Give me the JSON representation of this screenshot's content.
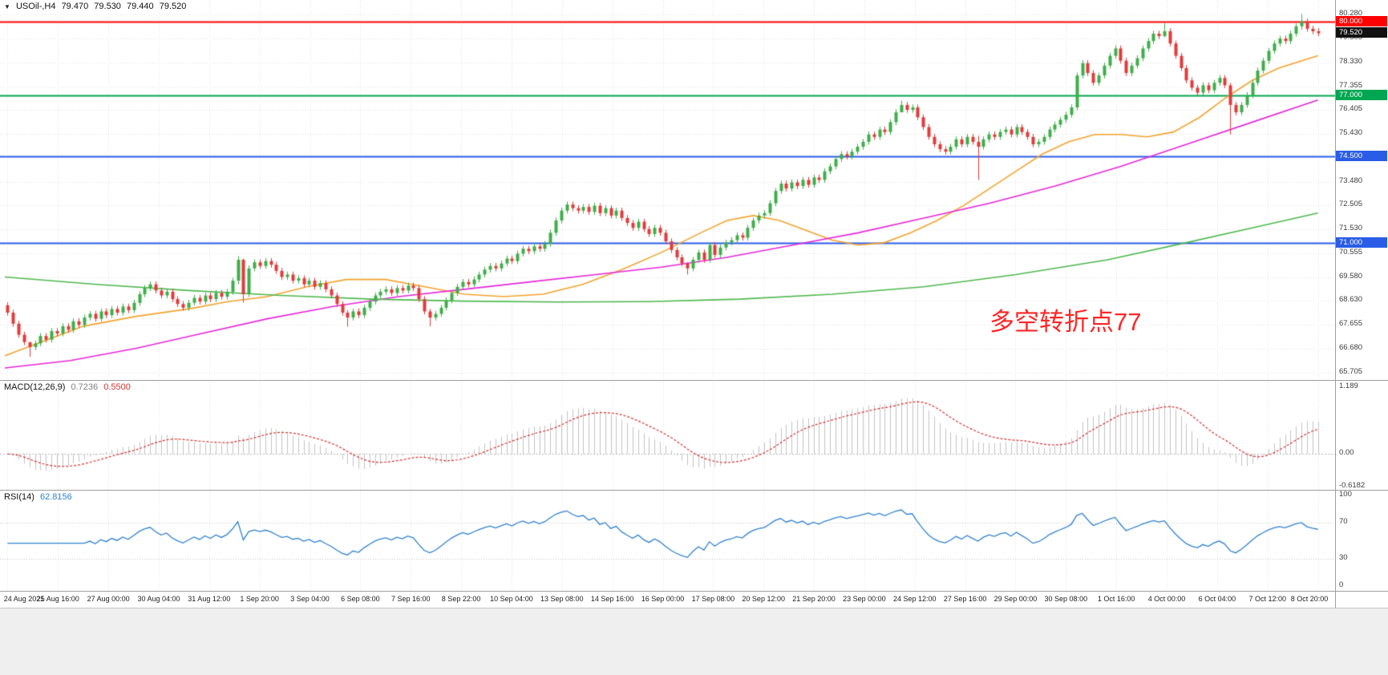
{
  "header": {
    "symbol": "USOil-,H4",
    "open": "79.470",
    "high": "79.530",
    "low": "79.440",
    "close": "79.520"
  },
  "icons": {
    "dropdown": "▼"
  },
  "colors": {
    "up": "#3fae49",
    "down": "#e23b3b",
    "grid": "#e3e3e3",
    "ma_fast": "#f2a22b",
    "ma_mid": "#e626d9",
    "ma_slow": "#4db84d",
    "macd_hist": "#c2c2c2",
    "macd_signal": "#d63031",
    "rsi_line": "#2f80d0",
    "hline_red": "#fe0000",
    "hline_green": "#00a651",
    "hline_blue": "#2a5ce6",
    "badge_current": "#111111",
    "annotation": "#fe2727"
  },
  "chart_data": {
    "type": "candlestick",
    "symbol": "USOil",
    "timeframe": "H4",
    "title": "USOil-,H4 79.470 79.530 79.440 79.520",
    "ylim": [
      65.41,
      80.87
    ],
    "first_open": 68.45,
    "wick_margin": 0.12,
    "closes": [
      68.15,
      67.7,
      67.25,
      66.95,
      66.75,
      66.9,
      67.2,
      67.05,
      67.4,
      67.3,
      67.6,
      67.45,
      67.8,
      67.65,
      67.95,
      68.1,
      67.9,
      68.2,
      68.05,
      68.3,
      68.15,
      68.4,
      68.25,
      68.55,
      68.9,
      69.15,
      69.3,
      69.05,
      68.85,
      69.0,
      68.7,
      68.5,
      68.35,
      68.55,
      68.75,
      68.6,
      68.85,
      68.7,
      68.95,
      68.8,
      69.0,
      69.45,
      70.3,
      68.9,
      69.95,
      70.2,
      70.05,
      70.25,
      70.1,
      69.85,
      69.6,
      69.7,
      69.45,
      69.55,
      69.3,
      69.45,
      69.2,
      69.35,
      69.1,
      68.85,
      68.5,
      68.15,
      67.95,
      68.2,
      68.05,
      68.35,
      68.6,
      68.85,
      69.0,
      69.1,
      68.95,
      69.15,
      69.05,
      69.25,
      69.15,
      68.7,
      68.2,
      67.95,
      68.1,
      68.35,
      68.65,
      68.95,
      69.2,
      69.4,
      69.3,
      69.5,
      69.7,
      69.9,
      70.05,
      69.95,
      70.15,
      70.35,
      70.25,
      70.55,
      70.75,
      70.65,
      70.85,
      70.75,
      70.95,
      71.4,
      71.9,
      72.3,
      72.55,
      72.4,
      72.3,
      72.45,
      72.25,
      72.5,
      72.2,
      72.4,
      72.1,
      72.3,
      72.0,
      71.8,
      71.6,
      71.85,
      71.55,
      71.35,
      71.6,
      71.4,
      71.05,
      70.7,
      70.4,
      70.15,
      69.95,
      70.3,
      70.6,
      70.3,
      70.9,
      70.5,
      70.8,
      71.0,
      71.1,
      71.3,
      71.2,
      71.6,
      71.9,
      72.1,
      72.2,
      72.6,
      73.1,
      73.4,
      73.2,
      73.45,
      73.3,
      73.55,
      73.35,
      73.65,
      73.55,
      73.9,
      74.1,
      74.4,
      74.6,
      74.5,
      74.7,
      74.9,
      75.1,
      75.4,
      75.3,
      75.6,
      75.5,
      75.9,
      76.3,
      76.6,
      76.4,
      76.5,
      76.1,
      75.7,
      75.3,
      75.0,
      74.8,
      74.7,
      74.9,
      75.2,
      75.0,
      75.3,
      75.1,
      74.9,
      75.2,
      75.4,
      75.3,
      75.5,
      75.6,
      75.4,
      75.7,
      75.5,
      75.3,
      75.0,
      75.1,
      75.3,
      75.6,
      75.8,
      76.0,
      76.2,
      76.5,
      77.8,
      78.3,
      77.9,
      77.5,
      77.8,
      78.2,
      78.6,
      78.9,
      78.4,
      77.9,
      78.2,
      78.5,
      78.9,
      79.2,
      79.5,
      79.4,
      79.6,
      79.1,
      78.6,
      78.1,
      77.6,
      77.3,
      77.1,
      77.4,
      77.2,
      77.5,
      77.7,
      77.4,
      76.6,
      76.3,
      76.6,
      77.0,
      77.5,
      78.0,
      78.4,
      78.8,
      79.1,
      79.3,
      79.2,
      79.5,
      79.8,
      80.0,
      79.7,
      79.6,
      79.52
    ],
    "wick_overrides": {
      "4": [
        66.95,
        66.35
      ],
      "42": [
        70.45,
        69.3
      ],
      "43": [
        70.35,
        68.55
      ],
      "62": [
        68.25,
        67.58
      ],
      "77": [
        68.3,
        67.6
      ],
      "124": [
        70.2,
        69.7
      ],
      "163": [
        76.78,
        76.3
      ],
      "177": [
        75.35,
        73.55
      ],
      "211": [
        79.92,
        79.35
      ],
      "223": [
        77.5,
        75.4
      ],
      "236": [
        80.3,
        79.65
      ]
    },
    "price_axis": [
      {
        "t": "80.280",
        "v": 80.28
      },
      {
        "t": "79.305",
        "v": 79.305
      },
      {
        "t": "78.330",
        "v": 78.33
      },
      {
        "t": "77.355",
        "v": 77.355
      },
      {
        "t": "76.405",
        "v": 76.405
      },
      {
        "t": "75.430",
        "v": 75.43
      },
      {
        "t": "73.480",
        "v": 73.48
      },
      {
        "t": "72.505",
        "v": 72.505
      },
      {
        "t": "71.530",
        "v": 71.53
      },
      {
        "t": "70.555",
        "v": 70.555
      },
      {
        "t": "69.580",
        "v": 69.58
      },
      {
        "t": "68.630",
        "v": 68.63
      },
      {
        "t": "67.655",
        "v": 67.655
      },
      {
        "t": "66.680",
        "v": 66.68
      },
      {
        "t": "65.705",
        "v": 65.705
      }
    ],
    "hlines": [
      {
        "v": 80.0,
        "t": "80.000",
        "color_key": "hline_red",
        "width": 2
      },
      {
        "v": 77.0,
        "t": "77.000",
        "color_key": "hline_green",
        "width": 2
      },
      {
        "v": 74.5,
        "t": "74.500",
        "color_key": "hline_blue",
        "width": 2
      },
      {
        "v": 71.0,
        "t": "71.000",
        "color_key": "hline_blue",
        "width": 2
      }
    ],
    "current_price": {
      "v": 79.52,
      "t": "79.520"
    },
    "annotation": {
      "text": "多空转折点77"
    },
    "ma_lines": [
      {
        "name": "ma-fast-orange",
        "color_key": "ma_fast",
        "points": [
          [
            0,
            66.4
          ],
          [
            0.03,
            67.0
          ],
          [
            0.06,
            67.6
          ],
          [
            0.1,
            68.0
          ],
          [
            0.14,
            68.3
          ],
          [
            0.17,
            68.6
          ],
          [
            0.2,
            68.8
          ],
          [
            0.23,
            69.2
          ],
          [
            0.26,
            69.5
          ],
          [
            0.29,
            69.5
          ],
          [
            0.32,
            69.2
          ],
          [
            0.35,
            68.9
          ],
          [
            0.38,
            68.8
          ],
          [
            0.41,
            68.9
          ],
          [
            0.44,
            69.3
          ],
          [
            0.47,
            69.9
          ],
          [
            0.5,
            70.6
          ],
          [
            0.53,
            71.4
          ],
          [
            0.55,
            71.9
          ],
          [
            0.57,
            72.1
          ],
          [
            0.59,
            71.9
          ],
          [
            0.61,
            71.5
          ],
          [
            0.63,
            71.1
          ],
          [
            0.65,
            70.9
          ],
          [
            0.67,
            71.0
          ],
          [
            0.69,
            71.4
          ],
          [
            0.71,
            71.9
          ],
          [
            0.73,
            72.5
          ],
          [
            0.75,
            73.2
          ],
          [
            0.77,
            73.9
          ],
          [
            0.79,
            74.6
          ],
          [
            0.81,
            75.1
          ],
          [
            0.83,
            75.4
          ],
          [
            0.85,
            75.4
          ],
          [
            0.87,
            75.3
          ],
          [
            0.89,
            75.5
          ],
          [
            0.91,
            76.1
          ],
          [
            0.93,
            76.9
          ],
          [
            0.95,
            77.6
          ],
          [
            0.97,
            78.1
          ],
          [
            1.0,
            78.6
          ]
        ]
      },
      {
        "name": "ma-mid-magenta",
        "color_key": "ma_mid",
        "points": [
          [
            0,
            65.9
          ],
          [
            0.05,
            66.2
          ],
          [
            0.1,
            66.7
          ],
          [
            0.15,
            67.3
          ],
          [
            0.2,
            67.9
          ],
          [
            0.25,
            68.4
          ],
          [
            0.3,
            68.8
          ],
          [
            0.35,
            69.1
          ],
          [
            0.4,
            69.4
          ],
          [
            0.45,
            69.7
          ],
          [
            0.5,
            70.0
          ],
          [
            0.55,
            70.4
          ],
          [
            0.6,
            70.9
          ],
          [
            0.65,
            71.4
          ],
          [
            0.7,
            72.0
          ],
          [
            0.75,
            72.6
          ],
          [
            0.8,
            73.3
          ],
          [
            0.85,
            74.1
          ],
          [
            0.9,
            75.0
          ],
          [
            0.95,
            75.9
          ],
          [
            1.0,
            76.8
          ]
        ]
      },
      {
        "name": "ma-slow-green",
        "color_key": "ma_slow",
        "points": [
          [
            0,
            69.6
          ],
          [
            0.07,
            69.3
          ],
          [
            0.14,
            69.05
          ],
          [
            0.21,
            68.85
          ],
          [
            0.28,
            68.7
          ],
          [
            0.35,
            68.62
          ],
          [
            0.42,
            68.58
          ],
          [
            0.49,
            68.6
          ],
          [
            0.56,
            68.7
          ],
          [
            0.63,
            68.9
          ],
          [
            0.7,
            69.2
          ],
          [
            0.77,
            69.7
          ],
          [
            0.84,
            70.3
          ],
          [
            0.9,
            71.0
          ],
          [
            0.95,
            71.6
          ],
          [
            1.0,
            72.2
          ]
        ]
      }
    ],
    "time_labels": [
      "24 Aug 2021",
      "25 Aug 16:00",
      "27 Aug 00:00",
      "30 Aug 04:00",
      "31 Aug 12:00",
      "1 Sep 20:00",
      "3 Sep 04:00",
      "6 Sep 08:00",
      "7 Sep 16:00",
      "8 Sep 22:00",
      "10 Sep 04:00",
      "13 Sep 08:00",
      "14 Sep 16:00",
      "16 Sep 00:00",
      "17 Sep 08:00",
      "20 Sep 12:00",
      "21 Sep 20:00",
      "23 Sep 00:00",
      "24 Sep 12:00",
      "27 Sep 16:00",
      "29 Sep 00:00",
      "30 Sep 08:00",
      "1 Oct 16:00",
      "4 Oct 00:00",
      "6 Oct 04:00",
      "7 Oct 12:00",
      "8 Oct 20:00"
    ],
    "macd": {
      "title": "MACD(12,26,9)",
      "value_main": "0.7236",
      "value_signal": "0.5500",
      "params": [
        12,
        26,
        9
      ],
      "ylim": [
        -0.64,
        1.305
      ],
      "axis": [
        {
          "t": "1.189",
          "v": 1.189
        },
        {
          "t": "0.00",
          "v": 0
        },
        {
          "t": "-0.6182",
          "v": -0.6182
        }
      ]
    },
    "rsi": {
      "title": "RSI(14)",
      "value": "62.8156",
      "period": 14,
      "levels": [
        70,
        30
      ],
      "ylim": [
        0,
        100
      ],
      "axis": [
        {
          "t": "100",
          "v": 100
        },
        {
          "t": "70",
          "v": 70
        },
        {
          "t": "30",
          "v": 30
        },
        {
          "t": "0",
          "v": 0
        }
      ]
    }
  }
}
